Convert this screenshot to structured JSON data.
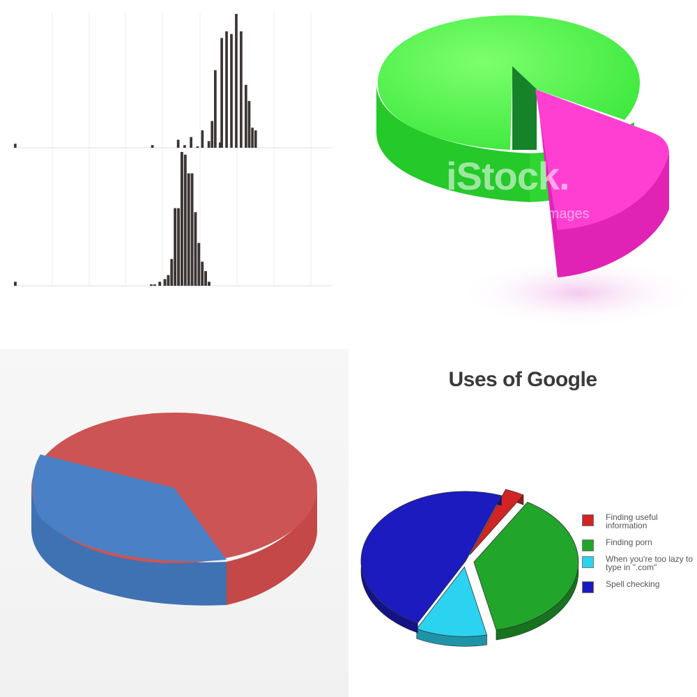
{
  "chart_data": [
    {
      "type": "bar",
      "title": "",
      "xlabel": "",
      "x_tick_labels": [],
      "panels": [
        {
          "ylabel": "",
          "values": [
            0.03,
            0,
            0,
            0,
            0,
            0,
            0,
            0,
            0,
            0,
            0,
            0,
            0,
            0,
            0,
            0,
            0,
            0,
            0,
            0,
            0,
            0,
            0,
            0,
            0,
            0,
            0,
            0,
            0,
            0,
            0,
            0,
            0,
            0,
            0,
            0,
            0,
            0,
            0,
            0,
            0,
            0,
            0,
            0,
            0,
            0,
            0,
            0,
            0,
            0,
            0,
            0,
            0,
            0,
            0,
            0,
            0,
            0,
            0,
            0,
            0,
            0,
            0,
            0,
            0,
            0,
            0,
            0,
            0,
            0,
            0,
            0,
            0,
            0,
            0,
            0,
            0,
            0,
            0,
            0,
            0,
            0,
            0,
            0,
            0,
            0.02,
            0,
            0,
            0,
            0,
            0,
            0,
            0,
            0,
            0,
            0,
            0,
            0,
            0,
            0,
            0,
            0.06,
            0,
            0,
            0,
            0.02,
            0,
            0,
            0,
            0.08,
            0,
            0,
            0,
            0.01,
            0,
            0,
            0.13,
            0,
            0,
            0,
            0.05,
            0,
            0.2,
            0,
            0.58,
            0,
            0,
            0.04,
            0.82,
            0,
            0,
            0.87,
            0,
            0,
            0.85,
            0,
            0,
            1.0,
            0,
            0,
            0.87,
            0,
            0,
            0.47,
            0,
            0.35,
            0,
            0.15,
            0,
            0.13,
            0,
            0,
            0,
            0,
            0,
            0,
            0,
            0,
            0,
            0,
            0,
            0,
            0,
            0,
            0,
            0,
            0,
            0,
            0,
            0,
            0,
            0,
            0,
            0,
            0,
            0,
            0,
            0,
            0,
            0,
            0,
            0,
            0,
            0,
            0,
            0,
            0,
            0,
            0,
            0,
            0,
            0,
            0,
            0,
            0,
            0,
            0
          ]
        },
        {
          "ylabel": "",
          "values": [
            0.03,
            0,
            0,
            0,
            0,
            0,
            0,
            0,
            0,
            0,
            0,
            0,
            0,
            0,
            0,
            0,
            0,
            0,
            0,
            0,
            0,
            0,
            0,
            0,
            0,
            0,
            0,
            0,
            0,
            0,
            0,
            0,
            0,
            0,
            0,
            0,
            0,
            0,
            0,
            0,
            0,
            0,
            0,
            0,
            0,
            0,
            0,
            0,
            0,
            0,
            0,
            0,
            0,
            0,
            0,
            0,
            0,
            0,
            0,
            0,
            0,
            0,
            0,
            0,
            0,
            0,
            0,
            0,
            0,
            0,
            0,
            0,
            0,
            0,
            0,
            0,
            0,
            0,
            0,
            0,
            0.01,
            0,
            0.01,
            0,
            0,
            0.03,
            0,
            0,
            0.05,
            0,
            0.08,
            0,
            0.2,
            0,
            0.58,
            0,
            0.58,
            0,
            1.0,
            0,
            0.98,
            0,
            0.84,
            0,
            0.84,
            0,
            0.55,
            0,
            0.32,
            0,
            0.18,
            0,
            0.11,
            0,
            0.03,
            0,
            0,
            0,
            0,
            0,
            0,
            0,
            0,
            0,
            0,
            0,
            0,
            0,
            0,
            0,
            0,
            0,
            0,
            0,
            0,
            0,
            0,
            0,
            0,
            0,
            0,
            0,
            0,
            0,
            0,
            0,
            0,
            0,
            0,
            0,
            0,
            0,
            0,
            0,
            0,
            0,
            0,
            0,
            0,
            0,
            0,
            0,
            0,
            0,
            0,
            0,
            0,
            0,
            0,
            0,
            0,
            0,
            0,
            0,
            0,
            0,
            0,
            0,
            0,
            0,
            0,
            0,
            0,
            0,
            0,
            0,
            0
          ]
        }
      ],
      "ylim": [
        0,
        1
      ]
    },
    {
      "type": "pie",
      "title": "",
      "slices": [
        {
          "label": "",
          "value": 84,
          "color": "#3de83d"
        },
        {
          "label": "",
          "value": 16,
          "color": "#ff3fd2"
        }
      ],
      "exploded": [
        1
      ],
      "watermark_primary": "iStock.",
      "watermark_secondary": "by Getty Images"
    },
    {
      "type": "pie",
      "title": "",
      "slices": [
        {
          "label": "",
          "value": 62,
          "color": "#cd5454"
        },
        {
          "label": "",
          "value": 38,
          "color": "#4a81c6"
        }
      ]
    },
    {
      "type": "pie",
      "title": "Uses of Google",
      "slices": [
        {
          "label": "Finding useful information",
          "value": 3,
          "color": "#d22424"
        },
        {
          "label": "Finding porn",
          "value": 38,
          "color": "#21a52b"
        },
        {
          "label": "When you're too lazy to type in \".com\"",
          "value": 11,
          "color": "#2cd3f0"
        },
        {
          "label": "Spell checking",
          "value": 48,
          "color": "#1b1bc0"
        }
      ],
      "legend": "right"
    }
  ]
}
